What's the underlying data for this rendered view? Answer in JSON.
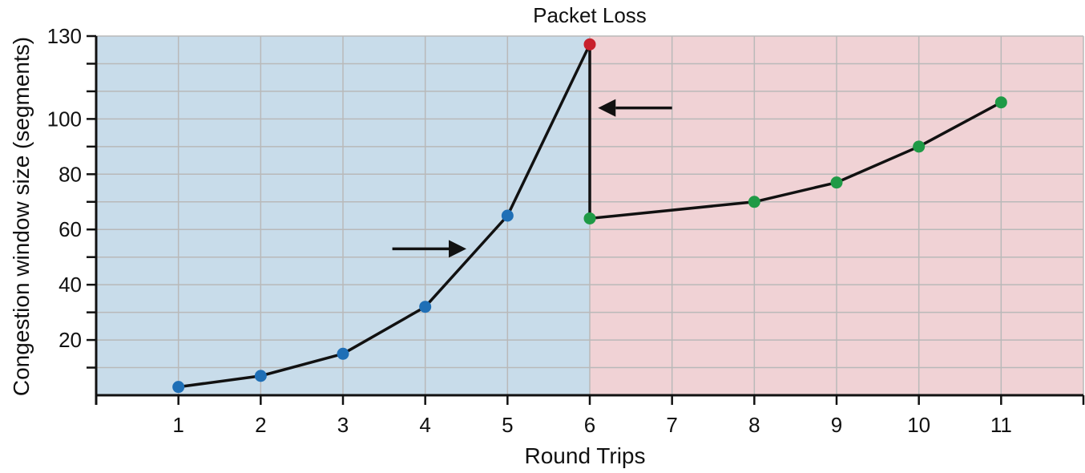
{
  "chart_data": {
    "type": "line",
    "title": "",
    "xlabel": "Round Trips",
    "ylabel": "Congestion window size (segments)",
    "x_ticks": [
      "1",
      "2",
      "3",
      "4",
      "5",
      "6",
      "7",
      "8",
      "9",
      "10",
      "11"
    ],
    "y_ticks": [
      "20",
      "40",
      "60",
      "80",
      "100",
      "130"
    ],
    "xlim": [
      0,
      12
    ],
    "ylim": [
      0,
      130
    ],
    "grid": true,
    "annotation": {
      "text": "Packet Loss",
      "x": 6,
      "y": 127
    },
    "regions": [
      {
        "name": "slow-start",
        "x_from": 0,
        "x_to": 6,
        "color": "#c8dcea"
      },
      {
        "name": "congestion-avoidance",
        "x_from": 6,
        "x_to": 12,
        "color": "#f0d2d5"
      }
    ],
    "path": [
      {
        "x": 1,
        "y": 3
      },
      {
        "x": 2,
        "y": 7
      },
      {
        "x": 3,
        "y": 15
      },
      {
        "x": 4,
        "y": 32
      },
      {
        "x": 5,
        "y": 65
      },
      {
        "x": 6,
        "y": 127
      },
      {
        "x": 6,
        "y": 64
      },
      {
        "x": 8,
        "y": 70
      },
      {
        "x": 9,
        "y": 77
      },
      {
        "x": 10,
        "y": 90
      },
      {
        "x": 11,
        "y": 106
      }
    ],
    "points": [
      {
        "x": 1,
        "y": 3,
        "color": "#1f6fb6"
      },
      {
        "x": 2,
        "y": 7,
        "color": "#1f6fb6"
      },
      {
        "x": 3,
        "y": 15,
        "color": "#1f6fb6"
      },
      {
        "x": 4,
        "y": 32,
        "color": "#1f6fb6"
      },
      {
        "x": 5,
        "y": 65,
        "color": "#1f6fb6"
      },
      {
        "x": 6,
        "y": 127,
        "color": "#c8202c"
      },
      {
        "x": 6,
        "y": 64,
        "color": "#1f9a46"
      },
      {
        "x": 8,
        "y": 70,
        "color": "#1f9a46"
      },
      {
        "x": 9,
        "y": 77,
        "color": "#1f9a46"
      },
      {
        "x": 10,
        "y": 90,
        "color": "#1f9a46"
      },
      {
        "x": 11,
        "y": 106,
        "color": "#1f9a46"
      }
    ],
    "arrows": [
      {
        "name": "slow-start-arrow",
        "direction": "right",
        "x_from": 3.6,
        "x_to": 4.5,
        "y": 53
      },
      {
        "name": "reset-arrow",
        "direction": "left",
        "x_from": 7.0,
        "x_to": 6.1,
        "y": 104
      }
    ],
    "colors": {
      "line": "#111111",
      "grid": "#b9b9b9",
      "axis": "#111111"
    }
  }
}
